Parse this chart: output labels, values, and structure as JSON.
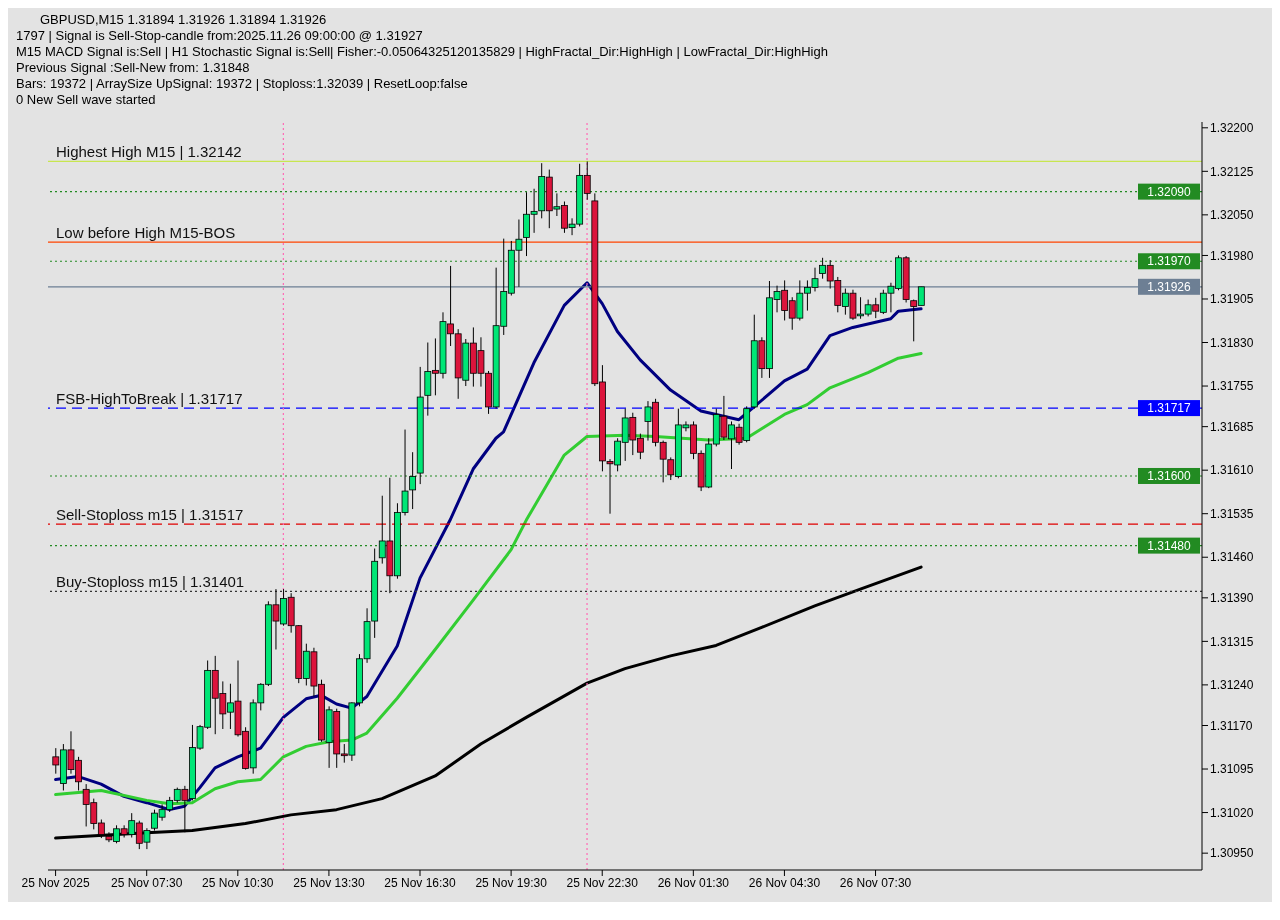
{
  "chart_data": {
    "type": "candlestick",
    "title": "GBPUSD,M15  1.31894 1.31926 1.31894 1.31926",
    "annotations": [
      "1797 | Signal is Sell-Stop-candle from:2025.11.26 09:00:00 @ 1.31927",
      "M15 MACD Signal is:Sell | H1 Stochastic Signal is:Sell| Fisher:-0.05064325120135829 | HighFractal_Dir:HighHigh | LowFractal_Dir:HighHigh",
      "Previous Signal :Sell-New from: 1.31848",
      "Bars: 19372 | ArraySize UpSignal: 19372 | Stoploss:1.32039 | ResetLoop:false",
      "0 New Sell wave started",
      {
        "text": "1.31717",
        "y": 1.31717
      }
    ],
    "x": [
      "2025-11-25T04:30",
      "2025-11-25T04:45",
      "2025-11-25T05:00",
      "2025-11-25T05:15",
      "2025-11-25T05:30",
      "2025-11-25T05:45",
      "2025-11-25T06:00",
      "2025-11-25T06:15",
      "2025-11-25T06:30",
      "2025-11-25T06:45",
      "2025-11-25T07:00",
      "2025-11-25T07:15",
      "2025-11-25T07:30",
      "2025-11-25T07:45",
      "2025-11-25T08:00",
      "2025-11-25T08:15",
      "2025-11-25T08:30",
      "2025-11-25T08:45",
      "2025-11-25T09:00",
      "2025-11-25T09:15",
      "2025-11-25T09:30",
      "2025-11-25T09:45",
      "2025-11-25T10:00",
      "2025-11-25T10:15",
      "2025-11-25T10:30",
      "2025-11-25T10:45",
      "2025-11-25T11:00",
      "2025-11-25T11:15",
      "2025-11-25T11:30",
      "2025-11-25T11:45",
      "2025-11-25T12:00",
      "2025-11-25T12:15",
      "2025-11-25T12:30",
      "2025-11-25T12:45",
      "2025-11-25T13:00",
      "2025-11-25T13:15",
      "2025-11-25T13:30",
      "2025-11-25T13:45",
      "2025-11-25T14:00",
      "2025-11-25T14:15",
      "2025-11-25T14:30",
      "2025-11-25T14:45",
      "2025-11-25T15:00",
      "2025-11-25T15:15",
      "2025-11-25T15:30",
      "2025-11-25T15:45",
      "2025-11-25T16:00",
      "2025-11-25T16:15",
      "2025-11-25T16:30",
      "2025-11-25T16:45",
      "2025-11-25T17:00",
      "2025-11-25T17:15",
      "2025-11-25T17:30",
      "2025-11-25T17:45",
      "2025-11-25T18:00",
      "2025-11-25T18:15",
      "2025-11-25T18:30",
      "2025-11-25T18:45",
      "2025-11-25T19:00",
      "2025-11-25T19:15",
      "2025-11-25T19:30",
      "2025-11-25T19:45",
      "2025-11-25T20:00",
      "2025-11-25T20:15",
      "2025-11-25T20:30",
      "2025-11-25T20:45",
      "2025-11-25T21:00",
      "2025-11-25T21:15",
      "2025-11-25T21:30",
      "2025-11-25T21:45",
      "2025-11-25T22:00",
      "2025-11-25T22:15",
      "2025-11-25T22:30",
      "2025-11-25T22:45",
      "2025-11-25T23:00",
      "2025-11-25T23:15",
      "2025-11-25T23:30",
      "2025-11-25T23:45",
      "2025-11-26T00:00",
      "2025-11-26T00:15",
      "2025-11-26T00:30",
      "2025-11-26T00:45",
      "2025-11-26T01:00",
      "2025-11-26T01:15",
      "2025-11-26T01:30",
      "2025-11-26T01:45",
      "2025-11-26T02:00",
      "2025-11-26T02:15",
      "2025-11-26T02:30",
      "2025-11-26T02:45",
      "2025-11-26T03:00",
      "2025-11-26T03:15",
      "2025-11-26T03:30",
      "2025-11-26T03:45",
      "2025-11-26T04:00",
      "2025-11-26T04:15",
      "2025-11-26T04:30",
      "2025-11-26T04:45",
      "2025-11-26T05:00",
      "2025-11-26T05:15",
      "2025-11-26T05:30",
      "2025-11-26T05:45",
      "2025-11-26T06:00",
      "2025-11-26T06:15",
      "2025-11-26T06:30",
      "2025-11-26T06:45",
      "2025-11-26T07:00",
      "2025-11-26T07:15",
      "2025-11-26T07:30",
      "2025-11-26T07:45",
      "2025-11-26T08:00",
      "2025-11-26T08:15",
      "2025-11-26T08:30",
      "2025-11-26T08:45",
      "2025-11-26T09:00"
    ],
    "ohlc": [
      [
        1.31116,
        1.31131,
        1.31087,
        1.31102
      ],
      [
        1.3107,
        1.31138,
        1.31058,
        1.31128
      ],
      [
        1.31128,
        1.3116,
        1.31087,
        1.31094
      ],
      [
        1.3111,
        1.31116,
        1.31058,
        1.31073
      ],
      [
        1.3106,
        1.31069,
        1.30996,
        1.31034
      ],
      [
        1.31037,
        1.31044,
        1.30991,
        1.31001
      ],
      [
        1.31002,
        1.31008,
        1.30976,
        1.30982
      ],
      [
        1.30979,
        1.30986,
        1.30969,
        1.30973
      ],
      [
        1.3097,
        1.30998,
        1.30967,
        1.30992
      ],
      [
        1.30992,
        1.30998,
        1.30977,
        1.30982
      ],
      [
        1.30982,
        1.31019,
        1.30977,
        1.31006
      ],
      [
        1.31002,
        1.31006,
        1.30957,
        1.30967
      ],
      [
        1.30969,
        1.30993,
        1.30957,
        1.30989
      ],
      [
        1.30993,
        1.31025,
        1.30989,
        1.31019
      ],
      [
        1.31012,
        1.31034,
        1.31006,
        1.31025
      ],
      [
        1.31025,
        1.31047,
        1.31021,
        1.31041
      ],
      [
        1.31041,
        1.31063,
        1.31037,
        1.3106
      ],
      [
        1.3106,
        1.31066,
        1.30986,
        1.31041
      ],
      [
        1.31044,
        1.31171,
        1.31041,
        1.31132
      ],
      [
        1.31131,
        1.31171,
        1.31128,
        1.31168
      ],
      [
        1.31167,
        1.31282,
        1.31164,
        1.31265
      ],
      [
        1.31265,
        1.3129,
        1.31155,
        1.31217
      ],
      [
        1.31225,
        1.31246,
        1.31164,
        1.3119
      ],
      [
        1.31193,
        1.31242,
        1.31164,
        1.31209
      ],
      [
        1.31212,
        1.31282,
        1.31151,
        1.31154
      ],
      [
        1.3116,
        1.31167,
        1.31094,
        1.31096
      ],
      [
        1.31097,
        1.31215,
        1.31087,
        1.31209
      ],
      [
        1.31209,
        1.31243,
        1.31196,
        1.31241
      ],
      [
        1.31241,
        1.31384,
        1.31238,
        1.31378
      ],
      [
        1.31378,
        1.31405,
        1.31301,
        1.3135
      ],
      [
        1.31345,
        1.31405,
        1.31342,
        1.31389
      ],
      [
        1.31391,
        1.31398,
        1.3133,
        1.31342
      ],
      [
        1.31342,
        1.31343,
        1.31243,
        1.31251
      ],
      [
        1.31251,
        1.31311,
        1.31239,
        1.31298
      ],
      [
        1.31297,
        1.31304,
        1.3122,
        1.31238
      ],
      [
        1.31241,
        1.31249,
        1.31142,
        1.31145
      ],
      [
        1.31141,
        1.31203,
        1.31097,
        1.31197
      ],
      [
        1.31194,
        1.31199,
        1.31097,
        1.31121
      ],
      [
        1.31121,
        1.31138,
        1.31106,
        1.31118
      ],
      [
        1.31119,
        1.3121,
        1.31109,
        1.31209
      ],
      [
        1.31209,
        1.31293,
        1.31203,
        1.31285
      ],
      [
        1.31285,
        1.31372,
        1.31278,
        1.31349
      ],
      [
        1.3135,
        1.31475,
        1.31321,
        1.31453
      ],
      [
        1.31459,
        1.31566,
        1.31449,
        1.31488
      ],
      [
        1.31488,
        1.31597,
        1.31398,
        1.31428
      ],
      [
        1.31428,
        1.31553,
        1.31423,
        1.31537
      ],
      [
        1.31537,
        1.3168,
        1.31532,
        1.31574
      ],
      [
        1.31576,
        1.31641,
        1.31543,
        1.31599
      ],
      [
        1.31605,
        1.31788,
        1.31586,
        1.31736
      ],
      [
        1.31739,
        1.3183,
        1.31704,
        1.3178
      ],
      [
        1.31782,
        1.31837,
        1.31739,
        1.31777
      ],
      [
        1.31777,
        1.31882,
        1.31768,
        1.31866
      ],
      [
        1.31862,
        1.31962,
        1.31824,
        1.31845
      ],
      [
        1.31845,
        1.31853,
        1.31733,
        1.31769
      ],
      [
        1.31765,
        1.31836,
        1.31755,
        1.31829
      ],
      [
        1.31829,
        1.31856,
        1.31754,
        1.31777
      ],
      [
        1.31816,
        1.31839,
        1.31754,
        1.31777
      ],
      [
        1.31777,
        1.31781,
        1.31707,
        1.31719
      ],
      [
        1.31719,
        1.31959,
        1.31716,
        1.31859
      ],
      [
        1.31858,
        1.32009,
        1.31843,
        1.31918
      ],
      [
        1.31915,
        1.32005,
        1.31911,
        1.31989
      ],
      [
        1.31989,
        1.32042,
        1.31926,
        1.32008
      ],
      [
        1.32011,
        1.32089,
        1.31979,
        1.32051
      ],
      [
        1.32051,
        1.32095,
        1.32019,
        1.32056
      ],
      [
        1.32057,
        1.32139,
        1.32044,
        1.32116
      ],
      [
        1.32115,
        1.32128,
        1.32027,
        1.32057
      ],
      [
        1.3206,
        1.32087,
        1.32048,
        1.32064
      ],
      [
        1.32066,
        1.32073,
        1.32019,
        1.32027
      ],
      [
        1.32028,
        1.32044,
        1.32015,
        1.32034
      ],
      [
        1.32034,
        1.32138,
        1.3203,
        1.32118
      ],
      [
        1.32118,
        1.32142,
        1.32076,
        1.32087
      ],
      [
        1.32074,
        1.32087,
        1.31755,
        1.31759
      ],
      [
        1.31762,
        1.31791,
        1.31608,
        1.31626
      ],
      [
        1.31625,
        1.31629,
        1.31535,
        1.31621
      ],
      [
        1.31619,
        1.31665,
        1.31608,
        1.3166
      ],
      [
        1.31658,
        1.31716,
        1.31626,
        1.317
      ],
      [
        1.31701,
        1.31709,
        1.31636,
        1.31662
      ],
      [
        1.31665,
        1.31673,
        1.31629,
        1.31641
      ],
      [
        1.31694,
        1.31729,
        1.31661,
        1.31719
      ],
      [
        1.31727,
        1.31733,
        1.31651,
        1.31658
      ],
      [
        1.31658,
        1.31661,
        1.31589,
        1.31629
      ],
      [
        1.31628,
        1.31632,
        1.31593,
        1.31602
      ],
      [
        1.31599,
        1.31716,
        1.31596,
        1.31688
      ],
      [
        1.31683,
        1.31694,
        1.31677,
        1.31688
      ],
      [
        1.31688,
        1.31694,
        1.31629,
        1.31639
      ],
      [
        1.31639,
        1.31644,
        1.31574,
        1.31581
      ],
      [
        1.31581,
        1.31665,
        1.31579,
        1.31655
      ],
      [
        1.31655,
        1.31716,
        1.31651,
        1.31706
      ],
      [
        1.31703,
        1.31738,
        1.31662,
        1.31667
      ],
      [
        1.31664,
        1.31694,
        1.31612,
        1.31688
      ],
      [
        1.31684,
        1.3169,
        1.31654,
        1.31658
      ],
      [
        1.31661,
        1.3172,
        1.31658,
        1.31716
      ],
      [
        1.31719,
        1.31878,
        1.31716,
        1.31833
      ],
      [
        1.31833,
        1.31839,
        1.31769,
        1.31785
      ],
      [
        1.31785,
        1.31936,
        1.31769,
        1.31907
      ],
      [
        1.31904,
        1.31928,
        1.31882,
        1.31918
      ],
      [
        1.3192,
        1.31937,
        1.31868,
        1.31885
      ],
      [
        1.31902,
        1.31908,
        1.31852,
        1.31872
      ],
      [
        1.31872,
        1.31937,
        1.31868,
        1.31915
      ],
      [
        1.31915,
        1.31937,
        1.31885,
        1.31925
      ],
      [
        1.31925,
        1.31959,
        1.31918,
        1.3194
      ],
      [
        1.31949,
        1.31976,
        1.3194,
        1.31963
      ],
      [
        1.31963,
        1.31972,
        1.31923,
        1.31936
      ],
      [
        1.31937,
        1.31943,
        1.31882,
        1.31894
      ],
      [
        1.31892,
        1.31923,
        1.31878,
        1.31915
      ],
      [
        1.31915,
        1.31921,
        1.31869,
        1.31872
      ],
      [
        1.31876,
        1.31908,
        1.31871,
        1.31879
      ],
      [
        1.31879,
        1.31904,
        1.31875,
        1.31895
      ],
      [
        1.31895,
        1.31907,
        1.31872,
        1.31884
      ],
      [
        1.31882,
        1.31921,
        1.31879,
        1.31915
      ],
      [
        1.31915,
        1.31933,
        1.31882,
        1.31927
      ],
      [
        1.31923,
        1.3198,
        1.3192,
        1.31976
      ],
      [
        1.31976,
        1.31979,
        1.31899,
        1.31904
      ],
      [
        1.31902,
        1.31904,
        1.31832,
        1.31892
      ],
      [
        1.31894,
        1.31926,
        1.31894,
        1.31926
      ]
    ],
    "series": [
      {
        "type": "line",
        "color": "#000080",
        "x": [
          "2025-11-25T04:30",
          "2025-11-25T05:15",
          "2025-11-25T06:00",
          "2025-11-25T06:45",
          "2025-11-25T07:30",
          "2025-11-25T08:15",
          "2025-11-25T08:45",
          "2025-11-25T09:15",
          "2025-11-25T09:45",
          "2025-11-25T10:30",
          "2025-11-25T11:15",
          "2025-11-25T12:00",
          "2025-11-25T12:45",
          "2025-11-25T13:15",
          "2025-11-25T13:45",
          "2025-11-25T14:15",
          "2025-11-25T14:45",
          "2025-11-25T15:45",
          "2025-11-25T16:30",
          "2025-11-25T17:30",
          "2025-11-25T18:15",
          "2025-11-25T19:00",
          "2025-11-25T19:15",
          "2025-11-25T20:15",
          "2025-11-25T21:15",
          "2025-11-25T22:00",
          "2025-11-25T22:30",
          "2025-11-25T23:00",
          "2025-11-25T23:45",
          "2025-11-26T00:45",
          "2025-11-26T01:45",
          "2025-11-26T03:00",
          "2025-11-26T03:30",
          "2025-11-26T04:30",
          "2025-11-26T05:15",
          "2025-11-26T06:00",
          "2025-11-26T06:45",
          "2025-11-26T08:00",
          "2025-11-26T08:15",
          "2025-11-26T09:00"
        ],
        "values": [
          1.31077,
          1.31082,
          1.31069,
          1.31048,
          1.31037,
          1.31025,
          1.31031,
          1.31063,
          1.31097,
          1.31116,
          1.31131,
          1.31184,
          1.31216,
          1.31222,
          1.31207,
          1.312,
          1.3122,
          1.31307,
          1.31424,
          1.31525,
          1.31612,
          1.31665,
          1.31676,
          1.31795,
          1.31894,
          1.31933,
          1.31897,
          1.31849,
          1.318,
          1.31748,
          1.31712,
          1.31697,
          1.31719,
          1.31764,
          1.31784,
          1.31842,
          1.31856,
          1.31871,
          1.31884,
          1.31888
        ]
      },
      {
        "type": "line",
        "color": "#32cd32",
        "x": [
          "2025-11-25T04:30",
          "2025-11-25T06:00",
          "2025-11-25T07:30",
          "2025-11-25T08:15",
          "2025-11-25T09:00",
          "2025-11-25T09:45",
          "2025-11-25T10:30",
          "2025-11-25T11:15",
          "2025-11-25T12:00",
          "2025-11-25T12:45",
          "2025-11-25T13:30",
          "2025-11-25T14:15",
          "2025-11-25T14:45",
          "2025-11-25T15:45",
          "2025-11-25T17:00",
          "2025-11-25T18:15",
          "2025-11-25T19:30",
          "2025-11-25T20:00",
          "2025-11-25T21:15",
          "2025-11-25T22:00",
          "2025-11-25T23:15",
          "2025-11-26T00:15",
          "2025-11-26T02:00",
          "2025-11-26T03:15",
          "2025-11-26T04:30",
          "2025-11-26T05:15",
          "2025-11-26T06:00",
          "2025-11-26T07:15",
          "2025-11-26T08:15",
          "2025-11-26T09:00"
        ],
        "values": [
          1.31051,
          1.31058,
          1.31041,
          1.31035,
          1.31037,
          1.31061,
          1.31073,
          1.31077,
          1.31116,
          1.31134,
          1.31142,
          1.31145,
          1.31157,
          1.31217,
          1.31301,
          1.31386,
          1.31473,
          1.31524,
          1.31636,
          1.31668,
          1.3167,
          1.31668,
          1.31662,
          1.31665,
          1.31706,
          1.31723,
          1.31752,
          1.31778,
          1.31803,
          1.31811
        ]
      },
      {
        "type": "line",
        "color": "#000000",
        "x": [
          "2025-11-25T04:30",
          "2025-11-25T07:30",
          "2025-11-25T09:00",
          "2025-11-25T10:45",
          "2025-11-25T12:15",
          "2025-11-25T13:45",
          "2025-11-25T15:15",
          "2025-11-25T17:00",
          "2025-11-25T18:30",
          "2025-11-25T20:00",
          "2025-11-25T22:00",
          "2025-11-25T23:15",
          "2025-11-26T00:45",
          "2025-11-26T02:15",
          "2025-11-26T03:45",
          "2025-11-26T05:30",
          "2025-11-26T07:00",
          "2025-11-26T09:00"
        ],
        "values": [
          1.30976,
          1.30985,
          1.30989,
          1.31001,
          1.31016,
          1.31025,
          1.31044,
          1.31083,
          1.31138,
          1.31184,
          1.31243,
          1.31268,
          1.3129,
          1.31308,
          1.31339,
          1.31376,
          1.31405,
          1.31443
        ]
      }
    ],
    "xlim": [
      "2025-11-25T04:15",
      "2025-11-26T18:15"
    ],
    "xticks": [
      {
        "value": "2025-11-25T04:30",
        "label": "25 Nov 2025"
      },
      {
        "value": "2025-11-25T07:30",
        "label": "25 Nov 07:30"
      },
      {
        "value": "2025-11-25T10:30",
        "label": "25 Nov 10:30"
      },
      {
        "value": "2025-11-25T13:30",
        "label": "25 Nov 13:30"
      },
      {
        "value": "2025-11-25T16:30",
        "label": "25 Nov 16:30"
      },
      {
        "value": "2025-11-25T19:30",
        "label": "25 Nov 19:30"
      },
      {
        "value": "2025-11-25T22:30",
        "label": "25 Nov 22:30"
      },
      {
        "value": "2025-11-26T01:30",
        "label": "26 Nov 01:30"
      },
      {
        "value": "2025-11-26T04:30",
        "label": "26 Nov 04:30"
      },
      {
        "value": "2025-11-26T07:30",
        "label": "26 Nov 07:30"
      }
    ],
    "ylim": [
      1.30921,
      1.3221
    ],
    "yticks": [
      {
        "value": 1.322,
        "label": "1.32200"
      },
      {
        "value": 1.32125,
        "label": "1.32125"
      },
      {
        "value": 1.3205,
        "label": "1.32050"
      },
      {
        "value": 1.3198,
        "label": "1.31980"
      },
      {
        "value": 1.31905,
        "label": "1.31905"
      },
      {
        "value": 1.3183,
        "label": "1.31830"
      },
      {
        "value": 1.31755,
        "label": "1.31755"
      },
      {
        "value": 1.31685,
        "label": "1.31685"
      },
      {
        "value": 1.3161,
        "label": "1.31610"
      },
      {
        "value": 1.31535,
        "label": "1.31535"
      },
      {
        "value": 1.3146,
        "label": "1.31460"
      },
      {
        "value": 1.3139,
        "label": "1.31390"
      },
      {
        "value": 1.31315,
        "label": "1.31315"
      },
      {
        "value": 1.3124,
        "label": "1.31240"
      },
      {
        "value": 1.3117,
        "label": "1.31170"
      },
      {
        "value": 1.31095,
        "label": "1.31095"
      },
      {
        "value": 1.3102,
        "label": "1.31020"
      },
      {
        "value": 1.3095,
        "label": "1.30950"
      }
    ],
    "ref_lines": [
      {
        "axis": "y",
        "value": 1.32142,
        "label": "Highest High   M15 | 1.32142",
        "color": "#c8e650",
        "line_style": "solid"
      },
      {
        "axis": "y",
        "value": 1.3209,
        "label": "1.32090",
        "color": "#228b22",
        "line_style": "dotted"
      },
      {
        "axis": "y",
        "value": 1.32003,
        "label": "Low before High   M15-BOS",
        "color": "#ff4500",
        "line_style": "solid"
      },
      {
        "axis": "y",
        "value": 1.3197,
        "label": "1.31970",
        "color": "#228b22",
        "line_style": "dotted"
      },
      {
        "axis": "y",
        "value": 1.31926,
        "label": "1.31926",
        "color": "#6d7f94",
        "line_style": "solid"
      },
      {
        "axis": "y",
        "value": 1.31717,
        "label": "FSB-HighToBreak | 1.31717",
        "color": "#0000ff",
        "line_style": "dashed"
      },
      {
        "axis": "y",
        "value": 1.316,
        "label": "1.31600",
        "color": "#228b22",
        "line_style": "dotted"
      },
      {
        "axis": "y",
        "value": 1.31517,
        "label": "Sell-Stoploss m15 | 1.31517",
        "color": "#e00000",
        "line_style": "dashed"
      },
      {
        "axis": "y",
        "value": 1.3148,
        "label": "1.31480",
        "color": "#228b22",
        "line_style": "dotted"
      },
      {
        "axis": "y",
        "value": 1.31401,
        "label": "Buy-Stoploss m15 | 1.31401",
        "color": "#333333",
        "line_style": "dotted"
      },
      {
        "axis": "x",
        "value": "2025-11-25T12:00",
        "color": "#ff69b4",
        "line_style": "dotted"
      },
      {
        "axis": "x",
        "value": "2025-11-25T22:00",
        "color": "#ff69b4",
        "line_style": "dotted"
      }
    ]
  }
}
